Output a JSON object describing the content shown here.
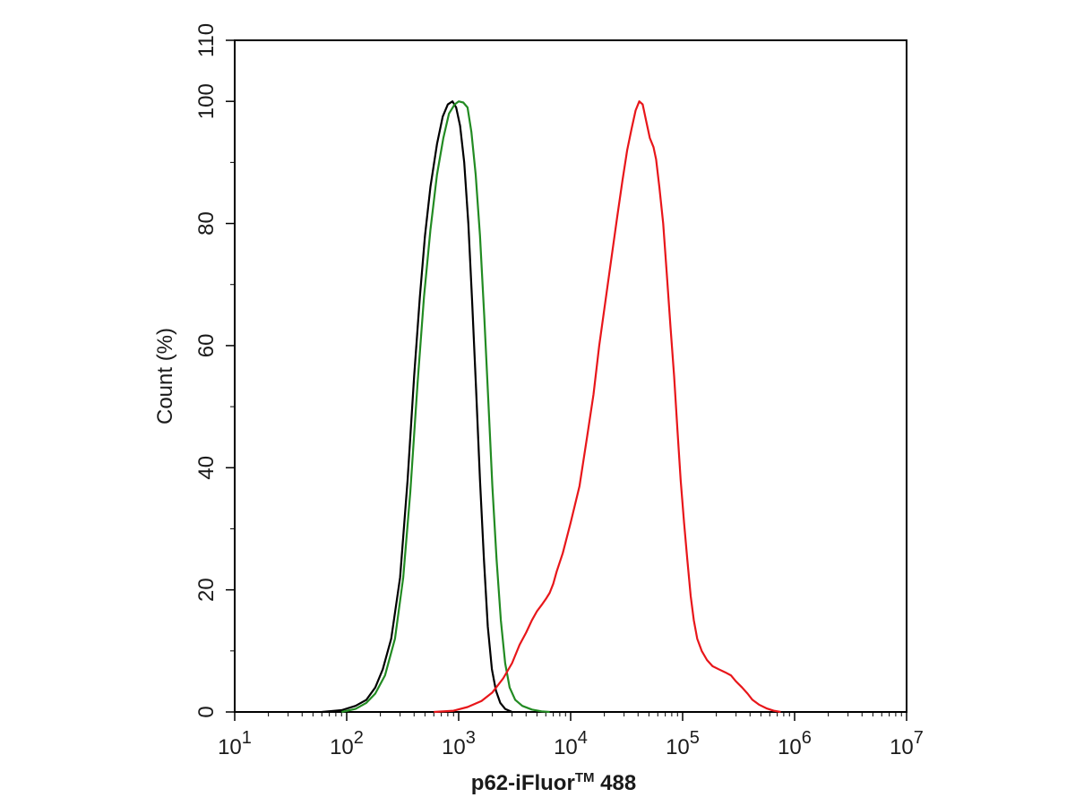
{
  "chart_data": {
    "type": "line",
    "xscale": "log",
    "xlim": [
      10,
      10000000
    ],
    "ylim": [
      0,
      110
    ],
    "xlabel": {
      "main": "p62-iFluor",
      "sup": "TM",
      "suffix": " 488"
    },
    "ylabel": "Count  (%)",
    "title": "",
    "grid": false,
    "legend": "none",
    "x_ticks": [
      {
        "value": 10,
        "base": "10",
        "exp": "1"
      },
      {
        "value": 100,
        "base": "10",
        "exp": "2"
      },
      {
        "value": 1000,
        "base": "10",
        "exp": "3"
      },
      {
        "value": 10000,
        "base": "10",
        "exp": "4"
      },
      {
        "value": 100000,
        "base": "10",
        "exp": "5"
      },
      {
        "value": 1000000,
        "base": "10",
        "exp": "6"
      },
      {
        "value": 10000000,
        "base": "10",
        "exp": "7"
      }
    ],
    "y_ticks": [
      {
        "value": 0,
        "label": "0"
      },
      {
        "value": 20,
        "label": "20"
      },
      {
        "value": 40,
        "label": "40"
      },
      {
        "value": 60,
        "label": "60"
      },
      {
        "value": 80,
        "label": "80"
      },
      {
        "value": 100,
        "label": "100"
      },
      {
        "value": 110,
        "label": "110"
      }
    ],
    "series": [
      {
        "color": "#000000",
        "points": [
          [
            60,
            0
          ],
          [
            90,
            0.3
          ],
          [
            120,
            1
          ],
          [
            150,
            2
          ],
          [
            180,
            4
          ],
          [
            210,
            7
          ],
          [
            250,
            12
          ],
          [
            300,
            22
          ],
          [
            350,
            38
          ],
          [
            400,
            55
          ],
          [
            450,
            68
          ],
          [
            500,
            78
          ],
          [
            560,
            86
          ],
          [
            640,
            93
          ],
          [
            720,
            97.5
          ],
          [
            800,
            99.5
          ],
          [
            880,
            100
          ],
          [
            950,
            99
          ],
          [
            1030,
            96
          ],
          [
            1120,
            90
          ],
          [
            1220,
            80
          ],
          [
            1320,
            67
          ],
          [
            1430,
            53
          ],
          [
            1550,
            38
          ],
          [
            1680,
            25
          ],
          [
            1820,
            14
          ],
          [
            1980,
            7
          ],
          [
            2150,
            3.5
          ],
          [
            2350,
            1.5
          ],
          [
            2600,
            0.5
          ],
          [
            3000,
            0
          ]
        ]
      },
      {
        "color": "#228b22",
        "points": [
          [
            90,
            0
          ],
          [
            120,
            0.5
          ],
          [
            150,
            1.5
          ],
          [
            180,
            3
          ],
          [
            220,
            6
          ],
          [
            270,
            12
          ],
          [
            320,
            22
          ],
          [
            370,
            36
          ],
          [
            430,
            54
          ],
          [
            490,
            68
          ],
          [
            560,
            79
          ],
          [
            640,
            88
          ],
          [
            730,
            94
          ],
          [
            820,
            98
          ],
          [
            920,
            99.5
          ],
          [
            1000,
            100
          ],
          [
            1100,
            99.8
          ],
          [
            1200,
            99
          ],
          [
            1300,
            95
          ],
          [
            1420,
            88
          ],
          [
            1550,
            78
          ],
          [
            1690,
            65
          ],
          [
            1840,
            51
          ],
          [
            2000,
            37
          ],
          [
            2180,
            25
          ],
          [
            2380,
            15
          ],
          [
            2600,
            8
          ],
          [
            2850,
            4
          ],
          [
            3200,
            2
          ],
          [
            3700,
            1
          ],
          [
            4500,
            0.4
          ],
          [
            5500,
            0.1
          ],
          [
            6500,
            0
          ]
        ]
      },
      {
        "color": "#e8161a",
        "points": [
          [
            600,
            0
          ],
          [
            900,
            0.2
          ],
          [
            1200,
            0.8
          ],
          [
            1600,
            1.8
          ],
          [
            2000,
            3.2
          ],
          [
            2500,
            5.5
          ],
          [
            3000,
            8
          ],
          [
            3500,
            11
          ],
          [
            4000,
            13
          ],
          [
            4500,
            15
          ],
          [
            5000,
            16.5
          ],
          [
            5500,
            17.5
          ],
          [
            6000,
            18.5
          ],
          [
            6500,
            19.5
          ],
          [
            7000,
            21
          ],
          [
            7500,
            23
          ],
          [
            8500,
            26
          ],
          [
            10000,
            31
          ],
          [
            12000,
            37
          ],
          [
            14000,
            45
          ],
          [
            16000,
            52
          ],
          [
            18000,
            60
          ],
          [
            20000,
            66
          ],
          [
            23000,
            74
          ],
          [
            26000,
            81
          ],
          [
            29000,
            87
          ],
          [
            32000,
            92
          ],
          [
            35000,
            95.5
          ],
          [
            38000,
            98.5
          ],
          [
            41000,
            100
          ],
          [
            44000,
            99.5
          ],
          [
            47000,
            97
          ],
          [
            51000,
            94
          ],
          [
            55000,
            92.5
          ],
          [
            58000,
            90.5
          ],
          [
            62000,
            86
          ],
          [
            67000,
            80
          ],
          [
            72000,
            72
          ],
          [
            78000,
            63
          ],
          [
            84000,
            55
          ],
          [
            90000,
            46
          ],
          [
            96000,
            38
          ],
          [
            103000,
            31
          ],
          [
            110000,
            25
          ],
          [
            118000,
            19
          ],
          [
            126000,
            15
          ],
          [
            135000,
            12
          ],
          [
            148000,
            10
          ],
          [
            165000,
            8.5
          ],
          [
            185000,
            7.5
          ],
          [
            210000,
            7
          ],
          [
            240000,
            6.5
          ],
          [
            270000,
            6
          ],
          [
            300000,
            5
          ],
          [
            340000,
            4
          ],
          [
            380000,
            3
          ],
          [
            420000,
            2
          ],
          [
            480000,
            1.2
          ],
          [
            560000,
            0.6
          ],
          [
            650000,
            0.2
          ],
          [
            750000,
            0
          ]
        ]
      }
    ]
  }
}
